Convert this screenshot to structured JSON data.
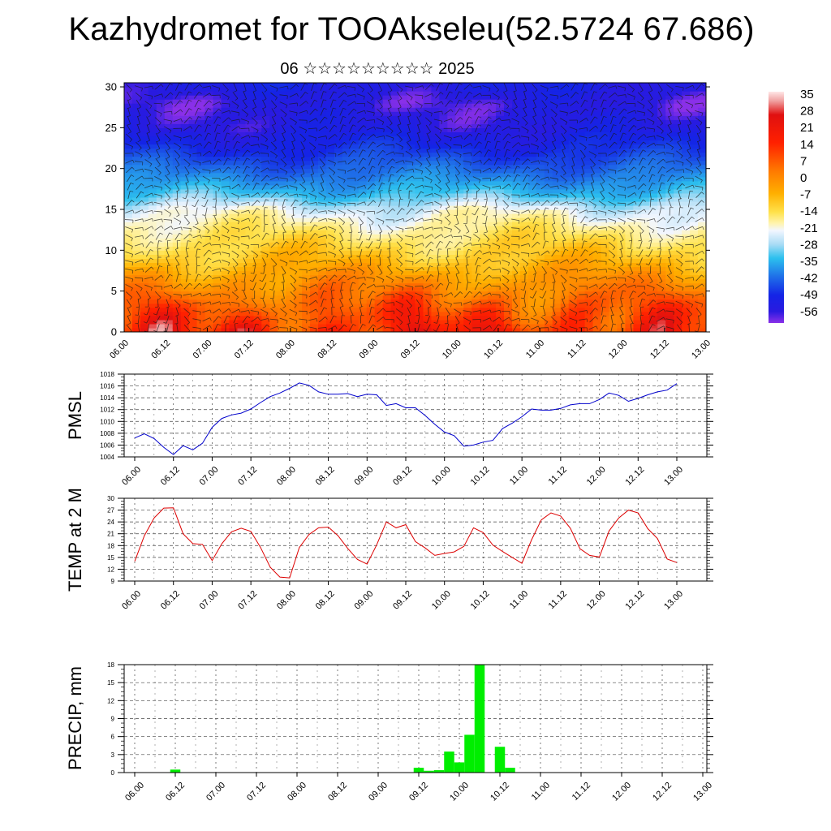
{
  "title": "Kazhydromet for TOOAkseleu(52.5724 67.686)",
  "subtitle": "06 ☆☆☆☆☆☆☆☆☆ 2025",
  "colors": {
    "pmsl_line": "#0000cc",
    "temp_line": "#dd0000",
    "precip_bar": "#00ee00"
  },
  "chart_data": [
    {
      "id": "cross_section",
      "type": "heatmap",
      "title": "",
      "xlabel": "",
      "ylabel": "",
      "x_tick_labels": [
        "06.00",
        "06.12",
        "07.00",
        "07.12",
        "08.00",
        "08.12",
        "09.00",
        "09.12",
        "10.00",
        "10.12",
        "11.00",
        "11.12",
        "12.00",
        "12.12",
        "13.00"
      ],
      "y_ticks": [
        0,
        5,
        10,
        15,
        20,
        25,
        30
      ],
      "ylim": [
        0,
        30.5
      ],
      "colorbar_labels": [
        35,
        28,
        21,
        14,
        7,
        0,
        -7,
        -14,
        -21,
        -28,
        -35,
        -42,
        -49,
        -56
      ],
      "color_range": [
        -63,
        42
      ],
      "profile_levels": [
        0,
        3,
        6,
        9,
        12,
        15,
        17,
        19,
        22,
        25,
        28,
        30.5
      ],
      "profile_values": [
        28,
        22,
        14,
        5,
        -2,
        -10,
        -22,
        -32,
        -45,
        -55,
        -58,
        -52
      ],
      "wind_barbs": true,
      "legend": "colorbar right"
    },
    {
      "id": "pmsl",
      "type": "line",
      "ylabel": "PMSL",
      "x_tick_labels": [
        "06.00",
        "06.12",
        "07.00",
        "07.12",
        "08.00",
        "08.12",
        "09.00",
        "09.12",
        "10.00",
        "10.12",
        "11.00",
        "11.12",
        "12.00",
        "12.12",
        "13.00"
      ],
      "y_ticks": [
        1004,
        1006,
        1008,
        1010,
        1012,
        1014,
        1016,
        1018
      ],
      "ylim": [
        1004,
        1018
      ],
      "grid": true,
      "x": [
        0,
        3,
        6,
        9,
        12,
        15,
        18,
        21,
        24,
        27,
        30,
        33,
        36,
        39,
        42,
        45,
        48,
        51,
        54,
        57,
        60,
        63,
        66,
        69,
        72,
        75,
        78,
        81,
        84,
        87,
        90,
        93,
        96,
        99,
        102,
        105,
        108,
        111,
        114,
        117,
        120,
        123,
        126,
        129,
        132,
        135,
        138,
        141,
        144,
        147,
        150,
        153,
        156,
        159,
        162,
        165,
        168
      ],
      "values": [
        1007.2,
        1007.9,
        1007.1,
        1005.6,
        1004.4,
        1005.9,
        1005.2,
        1006.3,
        1009.0,
        1010.5,
        1011.1,
        1011.4,
        1012.1,
        1013.2,
        1014.2,
        1014.8,
        1015.6,
        1016.5,
        1016.1,
        1015.0,
        1014.6,
        1014.6,
        1014.7,
        1014.2,
        1014.6,
        1014.5,
        1012.7,
        1013.0,
        1012.3,
        1012.3,
        1011.0,
        1009.5,
        1008.2,
        1007.6,
        1005.8,
        1006.0,
        1006.5,
        1006.8,
        1008.8,
        1009.7,
        1010.8,
        1012.1,
        1011.9,
        1011.9,
        1012.2,
        1012.8,
        1013.0,
        1013.0,
        1013.7,
        1014.8,
        1014.4,
        1013.4,
        1013.9,
        1014.5,
        1015.0,
        1015.3,
        1016.4
      ]
    },
    {
      "id": "temp2m",
      "type": "line",
      "ylabel": "TEMP at 2 M",
      "x_tick_labels": [
        "06.00",
        "06.12",
        "07.00",
        "07.12",
        "08.00",
        "08.12",
        "09.00",
        "09.12",
        "10.00",
        "10.12",
        "11.00",
        "11.12",
        "12.00",
        "12.12",
        "13.00"
      ],
      "y_ticks": [
        9,
        12,
        15,
        18,
        21,
        24,
        27,
        30
      ],
      "ylim": [
        9,
        30
      ],
      "grid": true,
      "x": [
        0,
        3,
        6,
        9,
        12,
        15,
        18,
        21,
        24,
        27,
        30,
        33,
        36,
        39,
        42,
        45,
        48,
        51,
        54,
        57,
        60,
        63,
        66,
        69,
        72,
        75,
        78,
        81,
        84,
        87,
        90,
        93,
        96,
        99,
        102,
        105,
        108,
        111,
        114,
        117,
        120,
        123,
        126,
        129,
        132,
        135,
        138,
        141,
        144,
        147,
        150,
        153,
        156,
        159,
        162,
        165,
        168
      ],
      "values": [
        14.0,
        20.5,
        25.0,
        27.5,
        27.6,
        21.0,
        18.5,
        18.3,
        14.2,
        18.5,
        21.5,
        22.4,
        21.6,
        17.5,
        12.5,
        10.0,
        9.8,
        17.5,
        20.8,
        22.5,
        22.7,
        20.5,
        17.3,
        14.5,
        13.3,
        18.2,
        24.0,
        22.5,
        23.3,
        19.0,
        17.4,
        15.5,
        16.0,
        16.4,
        17.8,
        22.5,
        21.3,
        18.1,
        16.5,
        15.0,
        13.5,
        19.5,
        24.5,
        26.3,
        25.5,
        22.4,
        17.2,
        15.5,
        15.1,
        21.7,
        25.0,
        27.0,
        26.3,
        22.3,
        19.8,
        14.6,
        13.7
      ]
    },
    {
      "id": "precip",
      "type": "bar",
      "ylabel": "PRECIP, mm",
      "x_tick_labels": [
        "06.00",
        "06.12",
        "07.00",
        "07.12",
        "08.00",
        "08.12",
        "09.00",
        "09.12",
        "10.00",
        "10.12",
        "11.00",
        "11.12",
        "12.00",
        "12.12",
        "13.00"
      ],
      "y_ticks": [
        0,
        3,
        6,
        9,
        12,
        15,
        18
      ],
      "ylim": [
        0,
        18
      ],
      "grid": true,
      "x": [
        0,
        3,
        6,
        9,
        12,
        15,
        18,
        21,
        24,
        27,
        30,
        33,
        36,
        39,
        42,
        45,
        48,
        51,
        54,
        57,
        60,
        63,
        66,
        69,
        72,
        75,
        78,
        81,
        84,
        87,
        90,
        93,
        96,
        99,
        102,
        105,
        108,
        111,
        114,
        117,
        120,
        123,
        126,
        129,
        132,
        135,
        138,
        141,
        144,
        147,
        150,
        153,
        156,
        159,
        162,
        165,
        168
      ],
      "values": [
        0,
        0,
        0,
        0,
        0.5,
        0,
        0,
        0,
        0,
        0,
        0,
        0,
        0,
        0,
        0,
        0,
        0,
        0,
        0,
        0,
        0,
        0,
        0,
        0,
        0,
        0,
        0,
        0,
        0.8,
        0.3,
        0.4,
        3.5,
        1.7,
        6.3,
        18.0,
        0,
        4.3,
        0.8,
        0.05,
        0.05,
        0,
        0,
        0,
        0,
        0,
        0,
        0,
        0,
        0,
        0,
        0,
        0,
        0,
        0,
        0,
        0,
        0
      ]
    }
  ]
}
